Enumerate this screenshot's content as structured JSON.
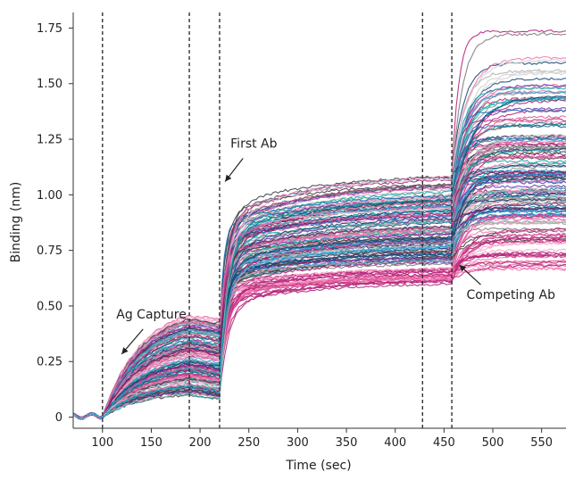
{
  "chart_data": {
    "type": "line",
    "title": "",
    "xlabel": "Time (sec)",
    "ylabel": "Binding (nm)",
    "xlim": [
      70,
      575
    ],
    "ylim": [
      -0.05,
      1.82
    ],
    "xticks": [
      100,
      150,
      200,
      250,
      300,
      350,
      400,
      450,
      500,
      550
    ],
    "yticks": [
      0,
      0.25,
      0.5,
      0.75,
      1.0,
      1.25,
      1.5,
      1.75
    ],
    "ytick_labels": [
      "0",
      "0.25",
      "0.50",
      "0.75",
      "1.00",
      "1.25",
      "1.50",
      "1.75"
    ],
    "grid": false,
    "legend": "none",
    "phase_markers": [
      100,
      189,
      220,
      428,
      458
    ],
    "series_count_approx": 200,
    "series_colors": [
      "#17a8a8",
      "#0f6fb0",
      "#2e9fd8",
      "#0a8a8a",
      "#9a9a9a",
      "#7d7d7d",
      "#b0b0b0",
      "#444444",
      "#e0569a",
      "#f07ab2",
      "#b5267a",
      "#6a3fb5",
      "#7a1f5c",
      "#1a4a78",
      "#cfcfcf"
    ],
    "envelope": {
      "x": [
        70,
        100,
        120,
        150,
        189,
        210,
        219,
        222,
        250,
        300,
        350,
        400,
        428,
        457,
        460,
        480,
        520,
        575
      ],
      "upper": [
        0.03,
        0.05,
        0.18,
        0.32,
        0.47,
        0.48,
        0.47,
        0.85,
        1.06,
        1.09,
        1.1,
        1.11,
        1.12,
        1.12,
        1.5,
        1.72,
        1.77,
        1.78
      ],
      "lower": [
        -0.02,
        -0.01,
        0.06,
        0.16,
        0.28,
        0.26,
        0.24,
        0.35,
        0.55,
        0.62,
        0.66,
        0.69,
        0.7,
        0.7,
        0.72,
        0.72,
        0.73,
        0.73
      ]
    },
    "annotations": [
      {
        "text": "Ag Capture",
        "x": 105,
        "y": 0.42
      },
      {
        "text": "First Ab",
        "x": 222,
        "y": 1.18
      },
      {
        "text": "Competing Ab",
        "x": 462,
        "y": 0.62
      }
    ]
  }
}
